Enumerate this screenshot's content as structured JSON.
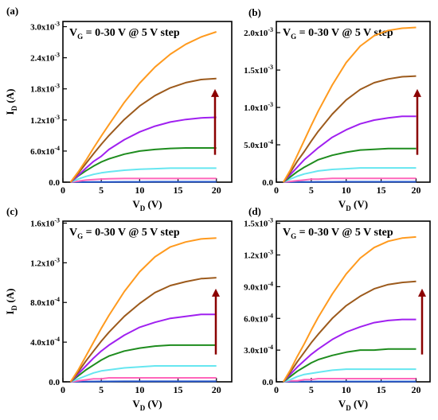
{
  "colors": {
    "series": [
      "#2255cc",
      "#ff66bb",
      "#66e6f0",
      "#1e8c1e",
      "#a020f0",
      "#9c5a1c",
      "#ff9a1e"
    ],
    "arrow": "#8b0000",
    "axis": "#000000"
  },
  "chart_data": [
    {
      "panel_label": "(a)",
      "type": "line",
      "annotation": "V",
      "annotation_sub": "G",
      "annotation_rest": " = 0-30 V @ 5 V step",
      "xlabel": "V",
      "xlabel_sub": "D",
      "xlabel_unit": " (V)",
      "ylabel": "I",
      "ylabel_sub": "D",
      "ylabel_unit": " (A)",
      "xlim": [
        0,
        22
      ],
      "ylim": [
        0,
        0.0031
      ],
      "xticks": [
        0,
        5,
        10,
        15,
        20
      ],
      "xtick_labels": [
        "0",
        "5",
        "10",
        "15",
        "20"
      ],
      "yticks": [
        0,
        0.0006,
        0.0012,
        0.0018,
        0.0024,
        0.003
      ],
      "ytick_labels": [
        "0.0",
        "6.0x10",
        "1.2x10",
        "1.8x10",
        "2.4x10",
        "3.0x10"
      ],
      "ytick_exps": [
        "",
        "-4",
        "-3",
        "-3",
        "-3",
        "-3"
      ],
      "x": [
        1,
        2,
        3,
        4,
        5,
        6,
        8,
        10,
        12,
        14,
        16,
        18,
        20
      ],
      "series": [
        {
          "values": [
            0,
            1e-06,
            2e-06,
            3e-06,
            4e-06,
            5e-06,
            6e-06,
            6e-06,
            7e-06,
            7e-06,
            7e-06,
            7e-06,
            7e-06
          ]
        },
        {
          "values": [
            0,
            2e-05,
            4e-05,
            5e-05,
            6e-05,
            6.5e-05,
            7e-05,
            7e-05,
            7e-05,
            7e-05,
            7e-05,
            7e-05,
            7e-05
          ]
        },
        {
          "values": [
            0,
            6e-05,
            0.00011,
            0.00015,
            0.00018,
            0.0002,
            0.00023,
            0.00025,
            0.00026,
            0.00027,
            0.00027,
            0.00027,
            0.00027
          ]
        },
        {
          "values": [
            0,
            0.00012,
            0.00022,
            0.00031,
            0.00039,
            0.00045,
            0.00054,
            0.0006,
            0.00063,
            0.00065,
            0.00066,
            0.00066,
            0.00066
          ]
        },
        {
          "values": [
            0,
            0.00013,
            0.00027,
            0.0004,
            0.0005,
            0.00063,
            0.00082,
            0.00097,
            0.00108,
            0.00116,
            0.00121,
            0.00124,
            0.00125
          ]
        },
        {
          "values": [
            0,
            0.00017,
            0.00036,
            0.00055,
            0.00073,
            0.0009,
            0.00121,
            0.00147,
            0.00167,
            0.00182,
            0.00192,
            0.00198,
            0.002
          ]
        },
        {
          "values": [
            0,
            0.0002,
            0.00042,
            0.00066,
            0.00089,
            0.00111,
            0.00154,
            0.00191,
            0.00222,
            0.00247,
            0.00266,
            0.0028,
            0.0029
          ]
        }
      ]
    },
    {
      "panel_label": "(b)",
      "type": "line",
      "annotation": "V",
      "annotation_sub": "G",
      "annotation_rest": " = 0-30 V @ 5 V step",
      "xlabel": "V",
      "xlabel_sub": "D",
      "xlabel_unit": " (V)",
      "ylabel": "",
      "ylabel_sub": "",
      "ylabel_unit": "",
      "xlim": [
        0,
        22
      ],
      "ylim": [
        0,
        0.00215
      ],
      "xticks": [
        0,
        5,
        10,
        15,
        20
      ],
      "xtick_labels": [
        "0",
        "5",
        "10",
        "15",
        "20"
      ],
      "yticks": [
        0,
        0.0005,
        0.001,
        0.0015,
        0.002
      ],
      "ytick_labels": [
        "0.0",
        "5.0x10",
        "1.0x10",
        "1.5x10",
        "2.0x10"
      ],
      "ytick_exps": [
        "",
        "-4",
        "-3",
        "-3",
        "-3"
      ],
      "x": [
        1,
        2,
        3,
        4,
        5,
        6,
        8,
        10,
        12,
        14,
        16,
        18,
        20
      ],
      "series": [
        {
          "values": [
            0,
            1e-06,
            2e-06,
            3e-06,
            3e-06,
            4e-06,
            4e-06,
            5e-06,
            5e-06,
            5e-06,
            5e-06,
            5e-06,
            5e-06
          ]
        },
        {
          "values": [
            0,
            1e-05,
            2e-05,
            3e-05,
            4e-05,
            4e-05,
            5e-05,
            5e-05,
            5e-05,
            5e-05,
            5e-05,
            5e-05,
            5e-05
          ]
        },
        {
          "values": [
            0,
            4e-05,
            8e-05,
            0.00011,
            0.00013,
            0.00015,
            0.00017,
            0.00018,
            0.00019,
            0.00019,
            0.00019,
            0.00019,
            0.00019
          ]
        },
        {
          "values": [
            0,
            7e-05,
            0.00014,
            0.0002,
            0.00025,
            0.0003,
            0.00036,
            0.0004,
            0.00043,
            0.00044,
            0.00045,
            0.00045,
            0.00045
          ]
        },
        {
          "values": [
            0,
            0.0001,
            0.0002,
            0.0003,
            0.00038,
            0.00046,
            0.0006,
            0.0007,
            0.00078,
            0.00083,
            0.00086,
            0.00088,
            0.00088
          ]
        },
        {
          "values": [
            0,
            0.00013,
            0.00028,
            0.00041,
            0.00055,
            0.00068,
            0.00091,
            0.0011,
            0.00124,
            0.00133,
            0.00138,
            0.00141,
            0.00142
          ]
        },
        {
          "values": [
            0,
            0.00016,
            0.00036,
            0.00056,
            0.00076,
            0.00095,
            0.0013,
            0.0016,
            0.00182,
            0.00196,
            0.00203,
            0.00206,
            0.00207
          ]
        }
      ]
    },
    {
      "panel_label": "(c)",
      "type": "line",
      "annotation": "V",
      "annotation_sub": "G",
      "annotation_rest": " = 0-30 V @ 5 V step",
      "xlabel": "V",
      "xlabel_sub": "D",
      "xlabel_unit": " (V)",
      "ylabel": "I",
      "ylabel_sub": "D",
      "ylabel_unit": " (A)",
      "xlim": [
        0,
        22
      ],
      "ylim": [
        0,
        0.00162
      ],
      "xticks": [
        0,
        5,
        10,
        15,
        20
      ],
      "xtick_labels": [
        "0",
        "5",
        "10",
        "15",
        "20"
      ],
      "yticks": [
        0,
        0.0004,
        0.0008,
        0.0012,
        0.0016
      ],
      "ytick_labels": [
        "0.0",
        "4.0x10",
        "8.0x10",
        "1.2x10",
        "1.6x10"
      ],
      "ytick_exps": [
        "",
        "-4",
        "-4",
        "-3",
        "-3"
      ],
      "x": [
        1,
        2,
        3,
        4,
        5,
        6,
        8,
        10,
        12,
        14,
        16,
        18,
        20
      ],
      "series": [
        {
          "values": [
            0,
            1e-06,
            2e-06,
            3e-06,
            4e-06,
            4e-06,
            5e-06,
            5e-06,
            5e-06,
            5e-06,
            5e-06,
            5e-06,
            5e-06
          ]
        },
        {
          "values": [
            0,
            1e-05,
            2e-05,
            3e-05,
            3e-05,
            4e-05,
            4e-05,
            4e-05,
            4e-05,
            4e-05,
            4e-05,
            4e-05,
            4e-05
          ]
        },
        {
          "values": [
            0,
            3e-05,
            6e-05,
            9e-05,
            0.00011,
            0.00012,
            0.00014,
            0.00015,
            0.00016,
            0.00016,
            0.00016,
            0.00016,
            0.00016
          ]
        },
        {
          "values": [
            0,
            6e-05,
            0.00012,
            0.00017,
            0.00022,
            0.00026,
            0.00031,
            0.00034,
            0.00036,
            0.00037,
            0.00037,
            0.00037,
            0.00037
          ]
        },
        {
          "values": [
            0,
            8e-05,
            0.00016,
            0.00024,
            0.00031,
            0.00037,
            0.00047,
            0.00055,
            0.0006,
            0.00064,
            0.00066,
            0.00068,
            0.00068
          ]
        },
        {
          "values": [
            0,
            0.0001,
            0.00021,
            0.00031,
            0.00041,
            0.0005,
            0.00066,
            0.00079,
            0.0009,
            0.00097,
            0.00101,
            0.00104,
            0.00105
          ]
        },
        {
          "values": [
            0,
            0.00012,
            0.00026,
            0.0004,
            0.00054,
            0.00067,
            0.00091,
            0.00111,
            0.00126,
            0.00136,
            0.00141,
            0.00144,
            0.00145
          ]
        }
      ]
    },
    {
      "panel_label": "(d)",
      "type": "line",
      "annotation": "V",
      "annotation_sub": "G",
      "annotation_rest": " = 0-30 V @ 5 V step",
      "xlabel": "V",
      "xlabel_sub": "D",
      "xlabel_unit": " (V)",
      "ylabel": "",
      "ylabel_sub": "",
      "ylabel_unit": "",
      "xlim": [
        0,
        22
      ],
      "ylim": [
        0,
        0.00152
      ],
      "xticks": [
        0,
        5,
        10,
        15,
        20
      ],
      "xtick_labels": [
        "0",
        "5",
        "10",
        "15",
        "20"
      ],
      "yticks": [
        0,
        0.0003,
        0.0006,
        0.0009,
        0.0012,
        0.0015
      ],
      "ytick_labels": [
        "0.0",
        "3.0x10",
        "6.0x10",
        "9.0x10",
        "1.2x10",
        "1.5x10"
      ],
      "ytick_exps": [
        "",
        "-4",
        "-4",
        "-4",
        "-3",
        "-3"
      ],
      "x": [
        1,
        2,
        3,
        4,
        5,
        6,
        8,
        10,
        12,
        14,
        16,
        18,
        20
      ],
      "series": [
        {
          "values": [
            0,
            1e-06,
            1e-06,
            2e-06,
            2e-06,
            3e-06,
            3e-06,
            3e-06,
            3e-06,
            3e-06,
            3e-06,
            3e-06,
            3e-06
          ]
        },
        {
          "values": [
            0,
            1e-05,
            1e-05,
            2e-05,
            2e-05,
            3e-05,
            3e-05,
            3e-05,
            3e-05,
            3e-05,
            3e-05,
            3e-05,
            3e-05
          ]
        },
        {
          "values": [
            0,
            2e-05,
            5e-05,
            7e-05,
            8e-05,
            9e-05,
            0.00011,
            0.00012,
            0.00012,
            0.00012,
            0.00012,
            0.00012,
            0.00012
          ]
        },
        {
          "values": [
            0,
            5e-05,
            0.0001,
            0.00014,
            0.00018,
            0.00021,
            0.00025,
            0.00028,
            0.0003,
            0.0003,
            0.00031,
            0.00031,
            0.00031
          ]
        },
        {
          "values": [
            0,
            7e-05,
            0.00014,
            0.0002,
            0.00026,
            0.00031,
            0.0004,
            0.00047,
            0.00052,
            0.00056,
            0.00058,
            0.00059,
            0.00059
          ]
        },
        {
          "values": [
            0,
            9e-05,
            0.00019,
            0.00028,
            0.00037,
            0.00045,
            0.0006,
            0.00072,
            0.00081,
            0.00088,
            0.00092,
            0.00094,
            0.00095
          ]
        },
        {
          "values": [
            0,
            0.00011,
            0.00024,
            0.00036,
            0.00049,
            0.00061,
            0.00083,
            0.00102,
            0.00117,
            0.00127,
            0.00133,
            0.00136,
            0.00137
          ]
        }
      ]
    }
  ]
}
